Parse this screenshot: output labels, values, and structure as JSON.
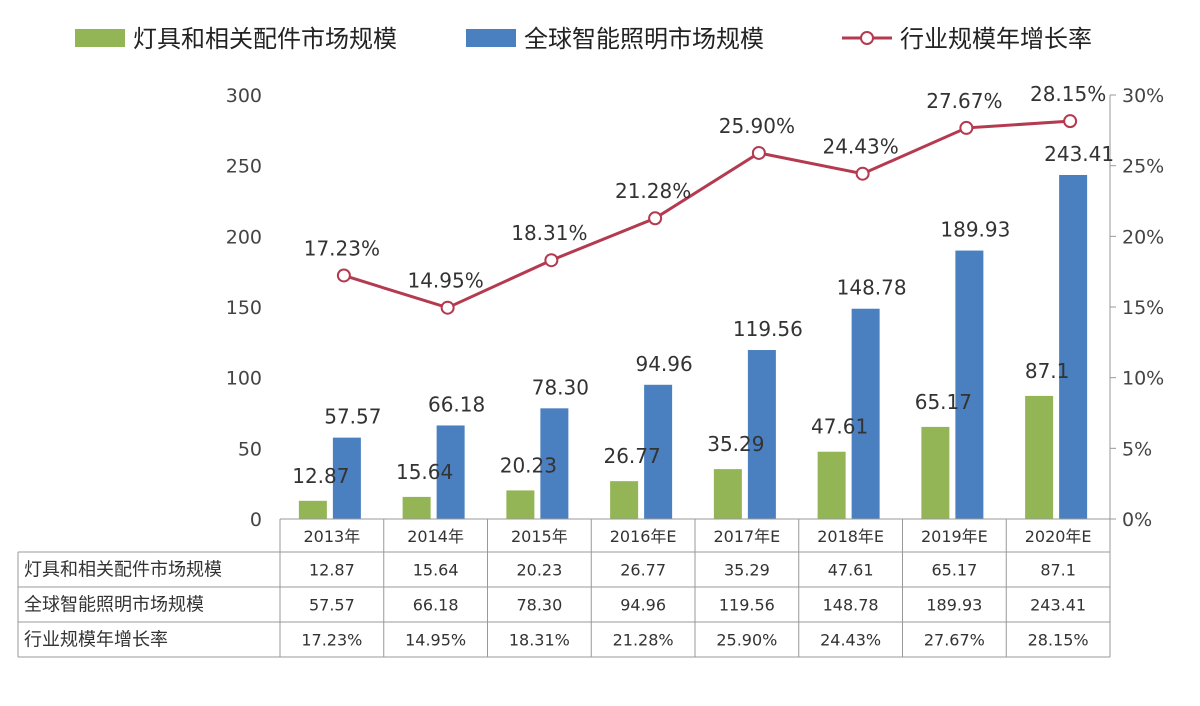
{
  "chart_data": {
    "type": "bar",
    "categories": [
      "2013年",
      "2014年",
      "2015年",
      "2016年E",
      "2017年E",
      "2018年E",
      "2019年E",
      "2020年E"
    ],
    "series": [
      {
        "name": "灯具和相关配件市场规模",
        "type": "bar",
        "axis": "left",
        "color": "#94b555",
        "values": [
          12.87,
          15.64,
          20.23,
          26.77,
          35.29,
          47.61,
          65.17,
          87.1
        ],
        "labels": [
          "12.87",
          "15.64",
          "20.23",
          "26.77",
          "35.29",
          "47.61",
          "65.17",
          "87.1"
        ]
      },
      {
        "name": "全球智能照明市场规模",
        "type": "bar",
        "axis": "left",
        "color": "#4a7fc0",
        "values": [
          57.57,
          66.18,
          78.3,
          94.96,
          119.56,
          148.78,
          189.93,
          243.41
        ],
        "labels": [
          "57.57",
          "66.18",
          "78.30",
          "94.96",
          "119.56",
          "148.78",
          "189.93",
          "243.41"
        ]
      },
      {
        "name": "行业规模年增长率",
        "type": "line",
        "axis": "right",
        "color": "#b43a50",
        "values": [
          17.23,
          14.95,
          18.31,
          21.28,
          25.9,
          24.43,
          27.67,
          28.15
        ],
        "labels": [
          "17.23%",
          "14.95%",
          "18.31%",
          "21.28%",
          "25.90%",
          "24.43%",
          "27.67%",
          "28.15%"
        ]
      }
    ],
    "y_left": {
      "ylim": [
        0,
        300
      ],
      "ticks": [
        "0",
        "50",
        "100",
        "150",
        "200",
        "250",
        "300"
      ]
    },
    "y_right": {
      "ylim": [
        0,
        30
      ],
      "ticks": [
        "0%",
        "5%",
        "10%",
        "15%",
        "20%",
        "25%",
        "30%"
      ]
    },
    "legend_position": "top",
    "grid": false,
    "data_table": {
      "rows": [
        {
          "label": "灯具和相关配件市场规模",
          "cells": [
            "12.87",
            "15.64",
            "20.23",
            "26.77",
            "35.29",
            "47.61",
            "65.17",
            "87.1"
          ]
        },
        {
          "label": "全球智能照明市场规模",
          "cells": [
            "57.57",
            "66.18",
            "78.30",
            "94.96",
            "119.56",
            "148.78",
            "189.93",
            "243.41"
          ]
        },
        {
          "label": "行业规模年增长率",
          "cells": [
            "17.23%",
            "14.95%",
            "18.31%",
            "21.28%",
            "25.90%",
            "24.43%",
            "27.67%",
            "28.15%"
          ]
        }
      ]
    }
  }
}
